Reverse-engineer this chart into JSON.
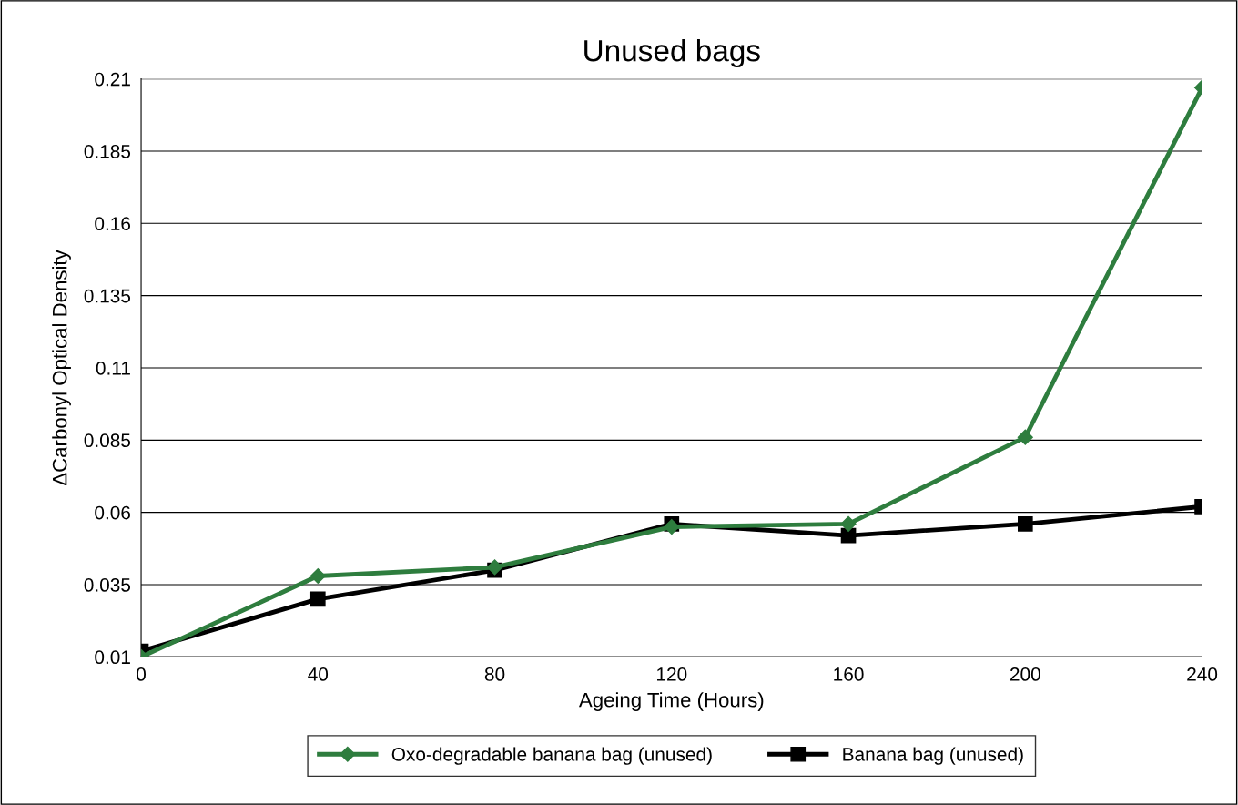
{
  "chart_data": {
    "type": "line",
    "title": "Unused bags",
    "xlabel": "Ageing Time (Hours)",
    "ylabel": "ΔCarbonyl Optical Density",
    "x": [
      0,
      40,
      80,
      120,
      160,
      200,
      240
    ],
    "series": [
      {
        "name": "Oxo-degradable banana bag (unused)",
        "color": "#2e7d3e",
        "marker": "diamond",
        "values": [
          0.01,
          0.038,
          0.041,
          0.055,
          0.056,
          0.086,
          0.207
        ]
      },
      {
        "name": "Banana bag (unused)",
        "color": "#000000",
        "marker": "square",
        "values": [
          0.012,
          0.03,
          0.04,
          0.056,
          0.052,
          0.056,
          0.062
        ]
      }
    ],
    "xlim": [
      0,
      240
    ],
    "xticks": [
      0,
      40,
      80,
      120,
      160,
      200,
      240
    ],
    "ylim": [
      0.01,
      0.21
    ],
    "yticks": [
      0.01,
      0.035,
      0.06,
      0.085,
      0.11,
      0.135,
      0.16,
      0.185,
      0.21
    ],
    "grid": "y",
    "legend": "bottom",
    "line_style": "solid"
  }
}
